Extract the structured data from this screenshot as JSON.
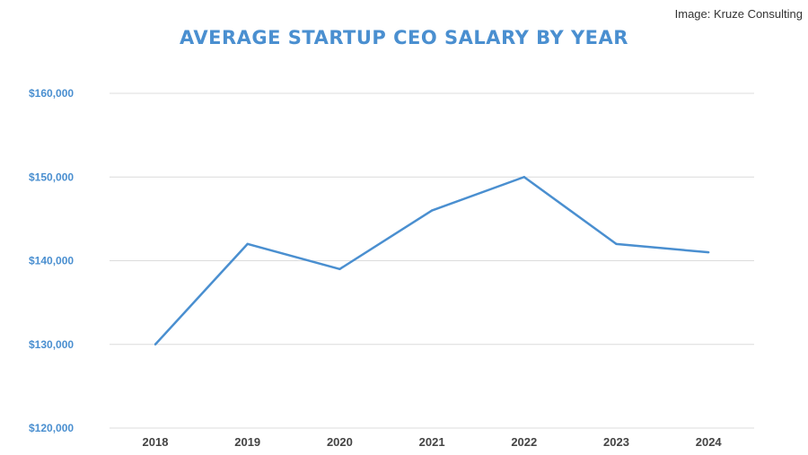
{
  "chart_data": {
    "type": "line",
    "title": "AVERAGE STARTUP CEO SALARY BY YEAR",
    "xlabel": "",
    "ylabel": "",
    "categories": [
      "2018",
      "2019",
      "2020",
      "2021",
      "2022",
      "2023",
      "2024"
    ],
    "values": [
      130000,
      142000,
      139000,
      146000,
      150000,
      142000,
      141000
    ],
    "ylim": [
      120000,
      160000
    ],
    "yticks": [
      120000,
      130000,
      140000,
      150000,
      160000
    ],
    "ytick_labels": [
      "$120,000",
      "$130,000",
      "$140,000",
      "$150,000",
      "$160,000"
    ],
    "grid": true,
    "line_color": "#4a8fd0",
    "title_color": "#4a8fd0",
    "ytick_color": "#4a8fd0",
    "xtick_color": "#444444"
  },
  "credit": "Image: Kruze Consulting"
}
